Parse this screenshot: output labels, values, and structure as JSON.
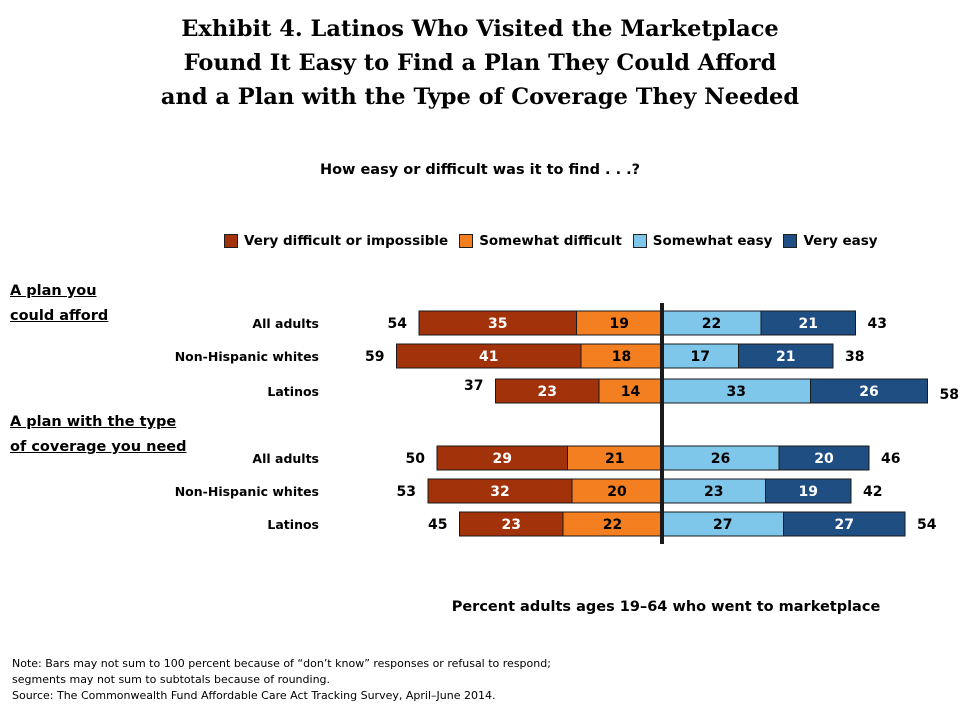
{
  "title_lines": [
    "Exhibit 4. Latinos Who Visited the Marketplace",
    "Found It Easy to Find a Plan They Could Afford",
    "and a Plan with the Type of Coverage They Needed"
  ],
  "subtitle": "How easy or difficult was it to find . . .?",
  "legend": [
    {
      "label": "Very difficult or impossible",
      "color": "#a2320a"
    },
    {
      "label": "Somewhat difficult",
      "color": "#f47f20"
    },
    {
      "label": "Somewhat easy",
      "color": "#7ec6ea"
    },
    {
      "label": "Very easy",
      "color": "#1f4e82"
    }
  ],
  "groups": [
    {
      "label_lines": [
        "A plan you",
        "could afford"
      ]
    },
    {
      "label_lines": [
        "A plan with the type",
        "of coverage you need"
      ]
    }
  ],
  "chart_data": {
    "type": "bar",
    "orientation": "horizontal-diverging",
    "xlabel": "Percent adults ages 19–64 who went to marketplace",
    "series_order": [
      "Very difficult or impossible",
      "Somewhat difficult",
      "Somewhat easy",
      "Very easy"
    ],
    "rows": [
      {
        "group": "A plan you could afford",
        "category": "All adults",
        "very_difficult": 35,
        "somewhat_difficult": 19,
        "somewhat_easy": 22,
        "very_easy": 21,
        "total_difficult": 54,
        "total_easy": 43
      },
      {
        "group": "A plan you could afford",
        "category": "Non-Hispanic whites",
        "very_difficult": 41,
        "somewhat_difficult": 18,
        "somewhat_easy": 17,
        "very_easy": 21,
        "total_difficult": 59,
        "total_easy": 38
      },
      {
        "group": "A plan you could afford",
        "category": "Latinos",
        "very_difficult": 23,
        "somewhat_difficult": 14,
        "somewhat_easy": 33,
        "very_easy": 26,
        "total_difficult": 37,
        "total_easy": 58
      },
      {
        "group": "A plan with the type of coverage you need",
        "category": "All adults",
        "very_difficult": 29,
        "somewhat_difficult": 21,
        "somewhat_easy": 26,
        "very_easy": 20,
        "total_difficult": 50,
        "total_easy": 46
      },
      {
        "group": "A plan with the type of coverage you need",
        "category": "Non-Hispanic whites",
        "very_difficult": 32,
        "somewhat_difficult": 20,
        "somewhat_easy": 23,
        "very_easy": 19,
        "total_difficult": 53,
        "total_easy": 42
      },
      {
        "group": "A plan with the type of coverage you need",
        "category": "Latinos",
        "very_difficult": 23,
        "somewhat_difficult": 22,
        "somewhat_easy": 27,
        "very_easy": 27,
        "total_difficult": 45,
        "total_easy": 54
      }
    ]
  },
  "notes": [
    "Note: Bars may not sum to 100 percent because of “don’t know” responses or refusal to respond;",
    "segments may not sum to subtotals because of rounding.",
    "Source: The Commonwealth Fund Affordable Care Act Tracking Survey, April–June 2014."
  ]
}
